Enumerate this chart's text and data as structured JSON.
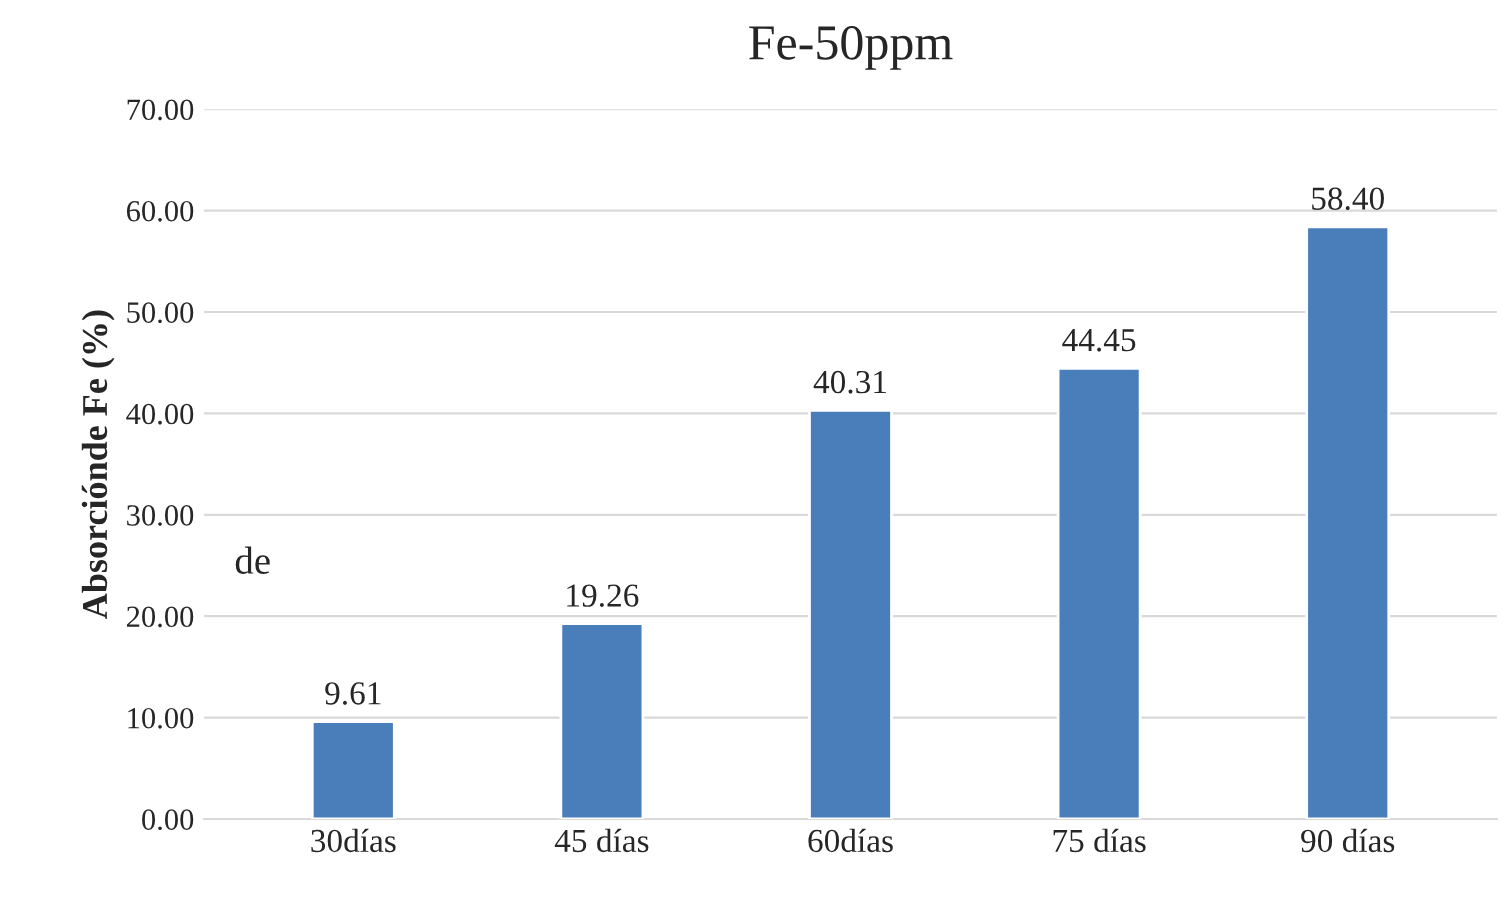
{
  "chart_data": {
    "type": "bar",
    "title": "Fe-50ppm",
    "ylabel": "Absorciónde Fe (%)",
    "categories": [
      "30días",
      "45 días",
      "60días",
      "75 días",
      "90 días"
    ],
    "values": [
      9.61,
      19.26,
      40.31,
      44.45,
      58.4
    ],
    "value_labels": [
      "9.61",
      "19.26",
      "40.31",
      "44.45",
      "58.40"
    ],
    "color": "#4a7ebb",
    "ylim": [
      0,
      70
    ],
    "yticks": [
      {
        "value": 0,
        "label": "0.00"
      },
      {
        "value": 10,
        "label": "10.00"
      },
      {
        "value": 20,
        "label": "20.00"
      },
      {
        "value": 30,
        "label": "30.00"
      },
      {
        "value": 40,
        "label": "40.00"
      },
      {
        "value": 50,
        "label": "50.00"
      },
      {
        "value": 60,
        "label": "60.00"
      },
      {
        "value": 70,
        "label": "70.00"
      }
    ],
    "grid": "y",
    "legend": false,
    "annotations": [
      "de"
    ]
  }
}
